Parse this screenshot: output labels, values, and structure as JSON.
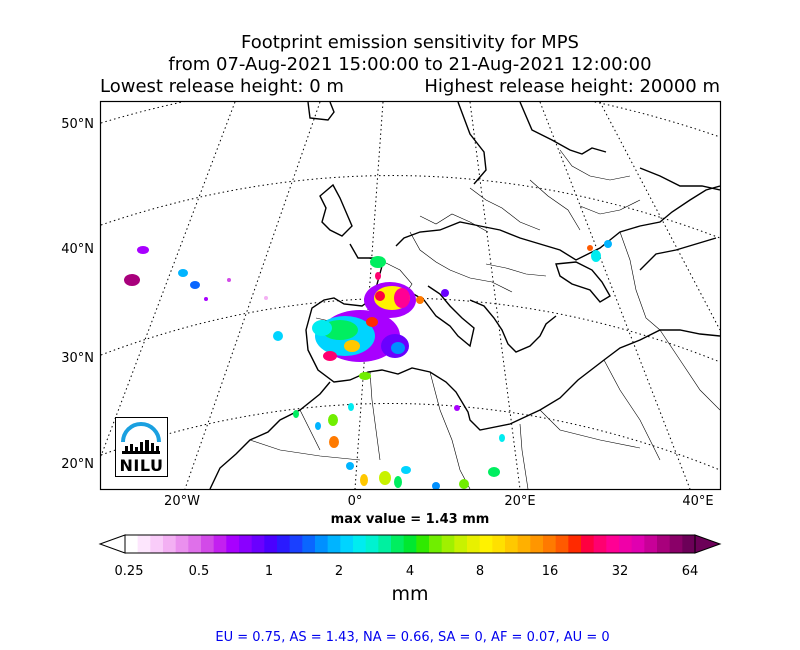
{
  "title": {
    "line1": "Footprint emission sensitivity for MPS",
    "line2": "from 07-Aug-2021 15:00:00 to 21-Aug-2021 12:00:00",
    "lowest": "Lowest release height: 0 m",
    "highest": "Highest release height: 20000 m"
  },
  "map": {
    "lat_labels": [
      "50°N",
      "40°N",
      "30°N",
      "20°N"
    ],
    "lon_labels": [
      "20°W",
      "0°",
      "20°E",
      "40°E"
    ],
    "max_value": "max value = 1.43 mm",
    "logo_text": "NILU"
  },
  "colorbar": {
    "ticks": [
      "0.25",
      "0.5",
      "1",
      "2",
      "4",
      "8",
      "16",
      "32",
      "64"
    ],
    "unit": "mm",
    "colors": [
      "#ffffff",
      "#fde6fd",
      "#f9ccf9",
      "#f3b0f3",
      "#ea90ee",
      "#df70ea",
      "#d24ae8",
      "#c320f0",
      "#a800ff",
      "#8a00ff",
      "#6a00ff",
      "#4a00ff",
      "#2a1aff",
      "#1a40ff",
      "#0a66ff",
      "#0090ff",
      "#00b4ff",
      "#00d4ff",
      "#00ecf0",
      "#00f2d0",
      "#00f0a0",
      "#00ee60",
      "#00e830",
      "#30ea00",
      "#70ee00",
      "#a0f000",
      "#c8f200",
      "#e8f000",
      "#fff200",
      "#ffe000",
      "#ffc800",
      "#ffb000",
      "#ff9600",
      "#ff7a00",
      "#ff5a00",
      "#ff2a00",
      "#ff0040",
      "#ff0070",
      "#ff0094",
      "#f000a8",
      "#e000b0",
      "#c80098",
      "#a8007c",
      "#8a0068",
      "#6c0058"
    ]
  },
  "stats": "EU = 0.75,  AS = 1.43,  NA = 0.66,  SA = 0,  AF = 0.07,  AU = 0"
}
